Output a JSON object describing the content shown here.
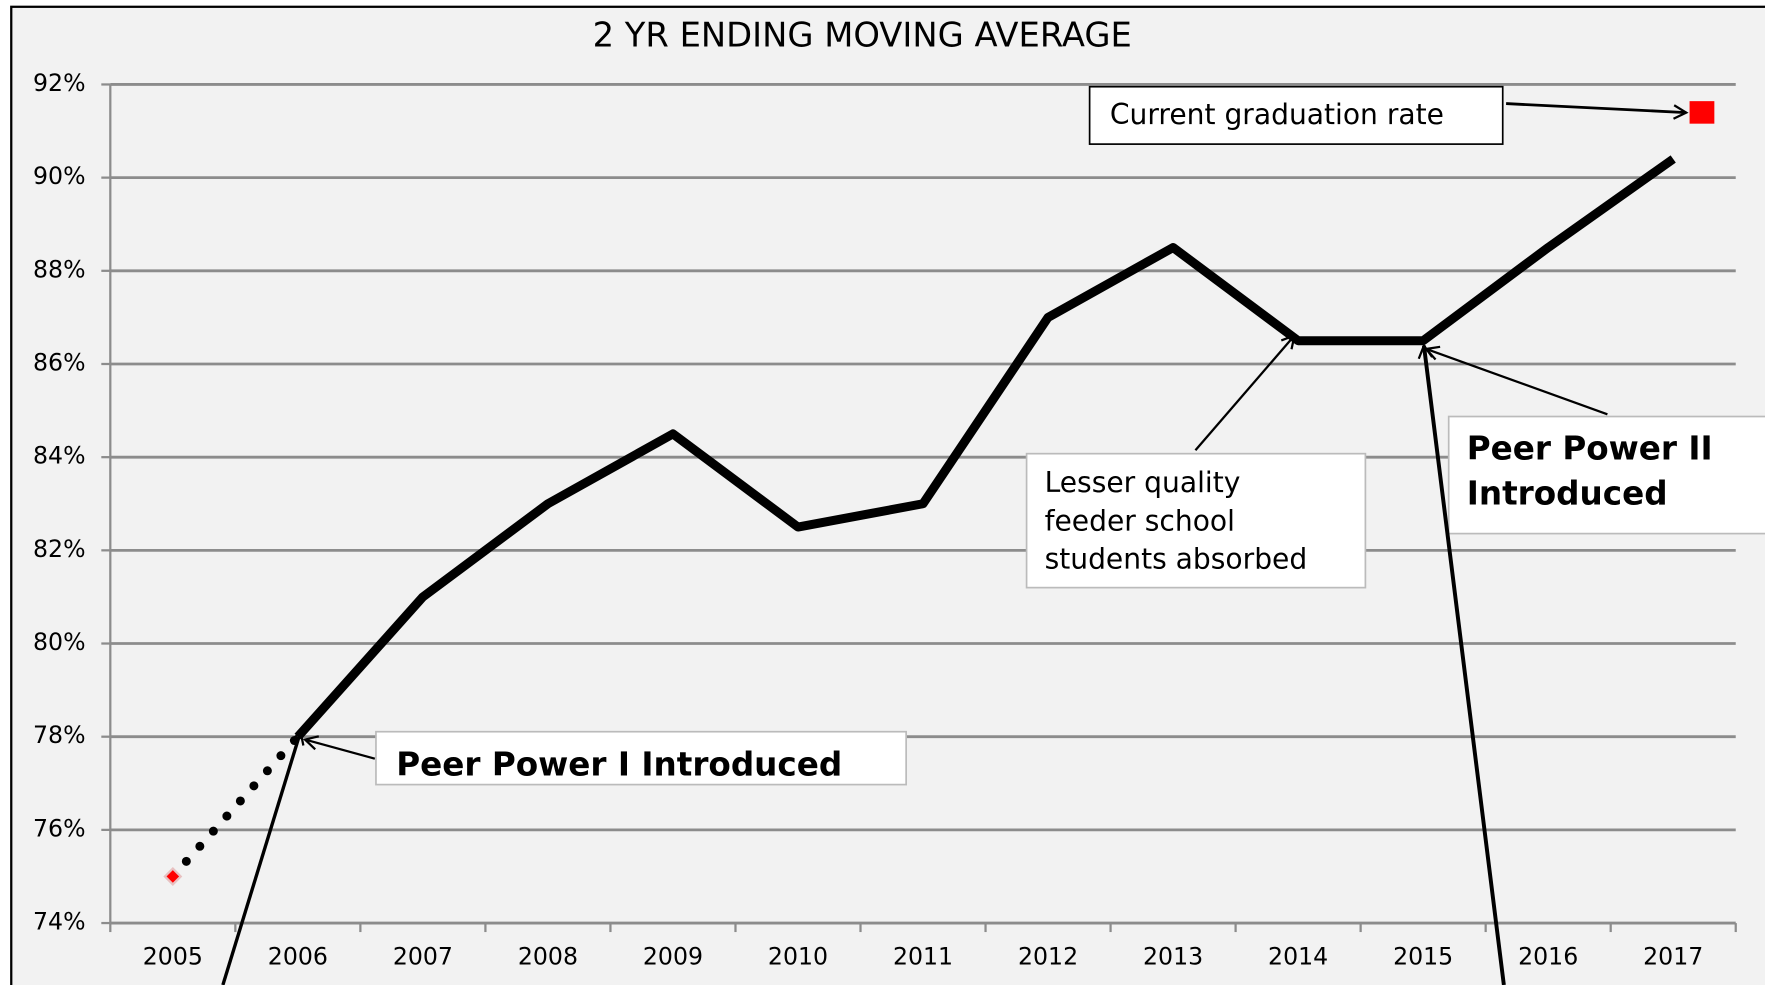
{
  "chart_data": {
    "type": "line",
    "title": "2 YR ENDING MOVING AVERAGE",
    "categories": [
      "2005",
      "2006",
      "2007",
      "2008",
      "2009",
      "2010",
      "2011",
      "2012",
      "2013",
      "2014",
      "2015",
      "2016",
      "2017"
    ],
    "series": [
      {
        "values": [
          null,
          78,
          81,
          83,
          84.5,
          82.5,
          83,
          87,
          88.5,
          86.5,
          86.5,
          88.5,
          90.4
        ],
        "color": "#000000",
        "style": "solid"
      },
      {
        "values": [
          75,
          78,
          null,
          null,
          null,
          null,
          null,
          null,
          null,
          null,
          null,
          null,
          null
        ],
        "color": "#000000",
        "style": "dotted"
      },
      {
        "values": [
          75,
          null,
          null,
          null,
          null,
          null,
          null,
          null,
          null,
          null,
          null,
          null,
          null
        ],
        "color": "#ff0000",
        "style": "diamond"
      }
    ],
    "current_rate": {
      "value": 91.4,
      "color": "#ff0000"
    },
    "ylim": [
      74,
      92
    ],
    "yticks": [
      {
        "value": 74,
        "label": "74%"
      },
      {
        "value": 76,
        "label": "76%"
      },
      {
        "value": 78,
        "label": "78%"
      },
      {
        "value": 80,
        "label": "80%"
      },
      {
        "value": 82,
        "label": "82%"
      },
      {
        "value": 84,
        "label": "84%"
      },
      {
        "value": 86,
        "label": "86%"
      },
      {
        "value": 88,
        "label": "88%"
      },
      {
        "value": 90,
        "label": "90%"
      },
      {
        "value": 92,
        "label": "92%"
      }
    ],
    "grid": true,
    "annotations": {
      "current": "Current graduation rate",
      "feeder": [
        "Lesser quality",
        "feeder school",
        "students absorbed"
      ],
      "peer2": [
        "Peer Power II",
        "Introduced"
      ],
      "peer1": "Peer Power I Introduced"
    }
  }
}
